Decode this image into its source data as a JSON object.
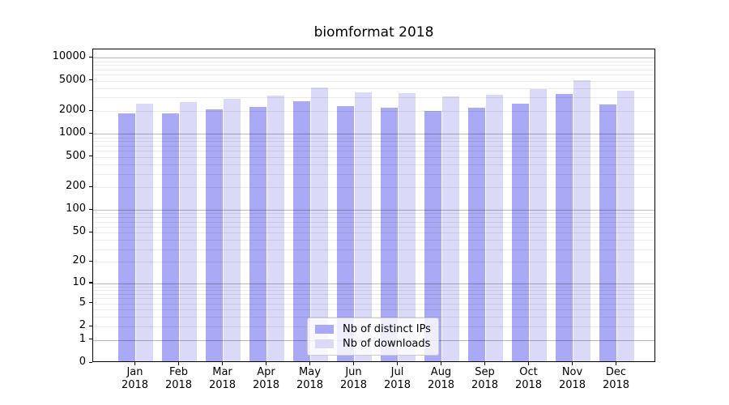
{
  "title": "biomformat 2018",
  "colors": {
    "bar_ips": "#a9a9f5",
    "bar_downloads": "#dadaf8",
    "grid_major": "rgba(0,0,0,0.27)",
    "grid_minor": "rgba(0,0,0,0.08)",
    "axis": "#000000",
    "legend_border": "#cccccc",
    "legend_background": "rgba(255,255,255,0.8)"
  },
  "legend": {
    "position": "lower-center-inside-plot"
  },
  "chart_data": {
    "type": "bar",
    "title": "biomformat 2018",
    "categories": [
      "Jan 2018",
      "Feb 2018",
      "Mar 2018",
      "Apr 2018",
      "May 2018",
      "Jun 2018",
      "Jul 2018",
      "Aug 2018",
      "Sep 2018",
      "Oct 2018",
      "Nov 2018",
      "Dec 2018"
    ],
    "series": [
      {
        "name": "Nb of distinct IPs",
        "color": "#a9a9f5",
        "values": [
          1760,
          1760,
          1990,
          2170,
          2530,
          2210,
          2080,
          1900,
          2100,
          2400,
          3180,
          2300
        ]
      },
      {
        "name": "Nb of downloads",
        "color": "#dadaf8",
        "values": [
          2350,
          2500,
          2750,
          3010,
          3850,
          3320,
          3240,
          2940,
          3140,
          3700,
          4790,
          3520
        ]
      }
    ],
    "xlabel": "",
    "ylabel": "",
    "yscale": "log10(1+y)",
    "ylim": [
      0,
      12800
    ],
    "y_ticks": [
      0,
      1,
      2,
      5,
      10,
      20,
      50,
      100,
      200,
      500,
      1000,
      2000,
      5000,
      10000
    ],
    "grid": {
      "major_at_powers_of_10": true,
      "minor_at_2_to_9_per_decade": true,
      "drawn_above_bars": true
    },
    "legend_entries": [
      "Nb of distinct IPs",
      "Nb of downloads"
    ],
    "legend_position": "lower center inside axes"
  }
}
